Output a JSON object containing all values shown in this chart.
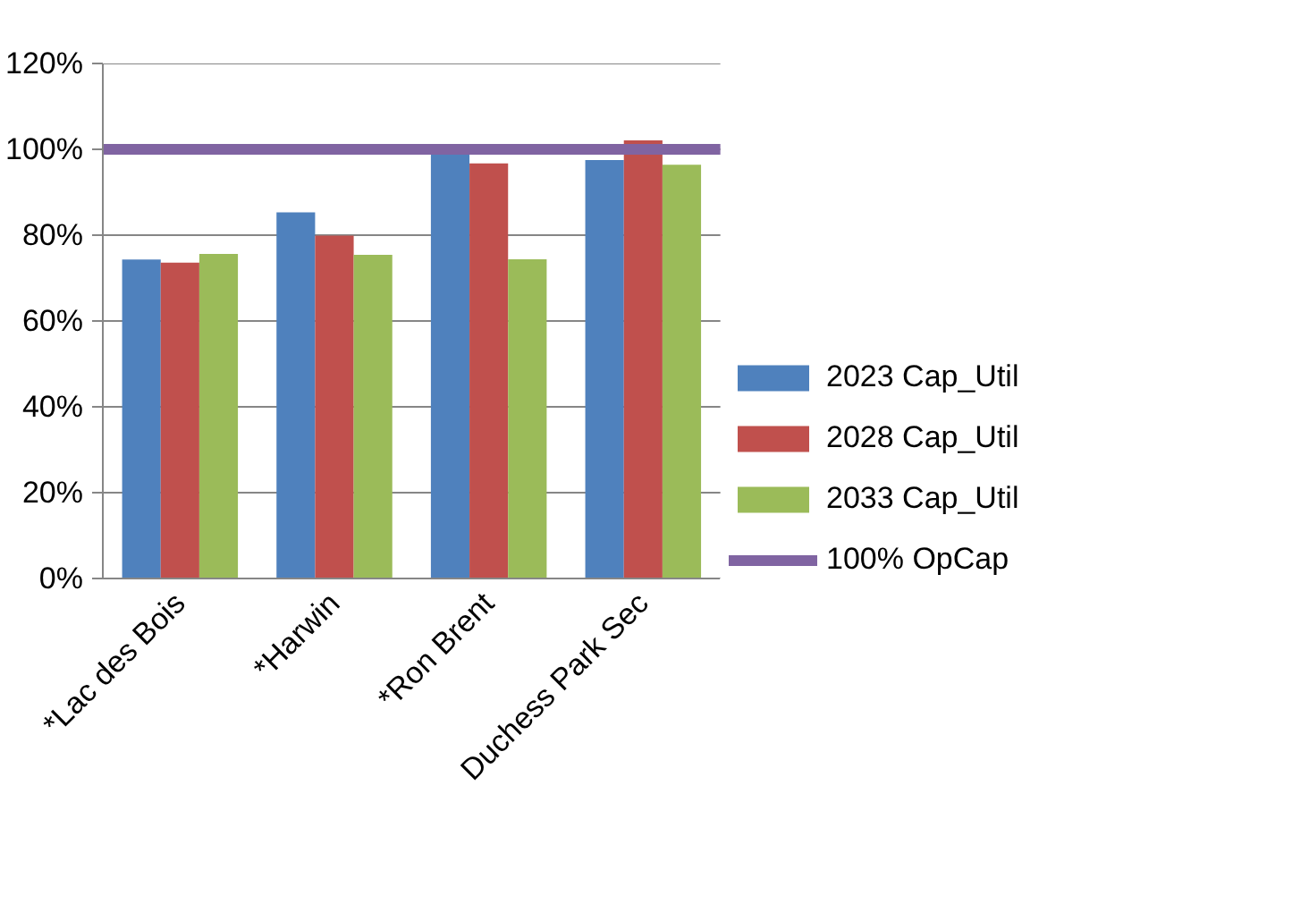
{
  "chart_data": {
    "type": "bar",
    "categories": [
      "*Lac des Bois",
      "*Harwin",
      "*Ron Brent",
      "Duchess Park Sec"
    ],
    "series": [
      {
        "name": "2023 Cap_Util",
        "color": "#4f81bd",
        "values": [
          74.3,
          85.3,
          99,
          97.5
        ]
      },
      {
        "name": "2028 Cap_Util",
        "color": "#c0504d",
        "values": [
          73.6,
          79.9,
          96.7,
          102.1
        ]
      },
      {
        "name": "2033 Cap_Util",
        "color": "#9bbb59",
        "values": [
          75.6,
          75.4,
          74.4,
          96.4
        ]
      }
    ],
    "ref_lines": [
      {
        "axis": "y",
        "value": 100,
        "label": "100% OpCap",
        "color": "#8064a2"
      }
    ],
    "ylim": [
      0,
      120
    ],
    "yticks": [
      {
        "value": 0,
        "label": "0%"
      },
      {
        "value": 20,
        "label": "20%"
      },
      {
        "value": 40,
        "label": "40%"
      },
      {
        "value": 60,
        "label": "60%"
      },
      {
        "value": 80,
        "label": "80%"
      },
      {
        "value": 100,
        "label": "100%"
      },
      {
        "value": 120,
        "label": "120%"
      }
    ],
    "grid": "y",
    "legend": "right"
  }
}
